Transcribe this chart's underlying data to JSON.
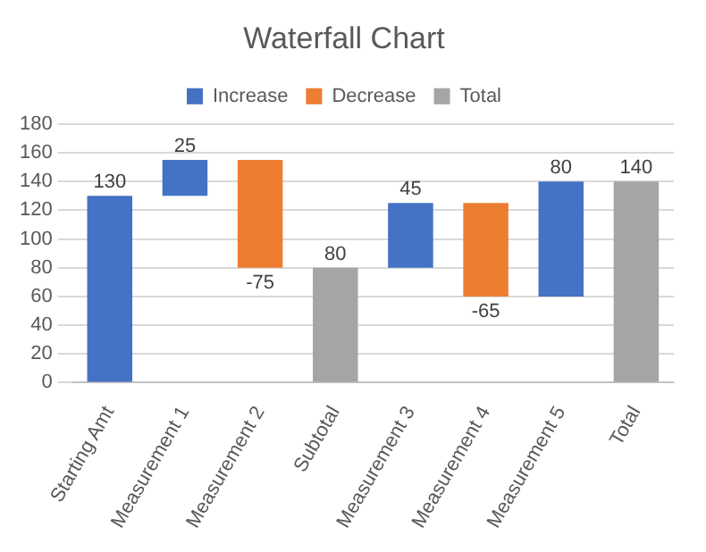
{
  "chart_data": {
    "type": "bar",
    "title": "Waterfall Chart",
    "categories": [
      "Starting Amt",
      "Measurement 1",
      "Measurement 2",
      "Subtotal",
      "Measurement 3",
      "Measurement 4",
      "Measurement 5",
      "Total"
    ],
    "series": [
      {
        "name": "Increase",
        "color": "#4472c4",
        "values": [
          130,
          25,
          null,
          null,
          45,
          null,
          80,
          null
        ],
        "base": [
          0,
          130,
          null,
          null,
          80,
          null,
          60,
          null
        ],
        "value_labels": [
          "130",
          "25",
          null,
          null,
          "45",
          null,
          "80",
          null
        ]
      },
      {
        "name": "Decrease",
        "color": "#ed7d31",
        "values": [
          null,
          null,
          -75,
          null,
          null,
          -65,
          null,
          null
        ],
        "base": [
          null,
          null,
          155,
          null,
          null,
          125,
          null,
          null
        ],
        "value_labels": [
          null,
          null,
          "-75",
          null,
          null,
          "-65",
          null,
          null
        ]
      },
      {
        "name": "Total",
        "color": "#a5a5a5",
        "values": [
          null,
          null,
          null,
          80,
          null,
          null,
          null,
          140
        ],
        "base": [
          null,
          null,
          null,
          0,
          null,
          null,
          null,
          0
        ],
        "value_labels": [
          null,
          null,
          null,
          "80",
          null,
          null,
          null,
          "140"
        ]
      }
    ],
    "ylim": [
      0,
      180
    ],
    "yticks": [
      0,
      20,
      40,
      60,
      80,
      100,
      120,
      140,
      160,
      180
    ],
    "grid": "y",
    "legend": "top"
  }
}
